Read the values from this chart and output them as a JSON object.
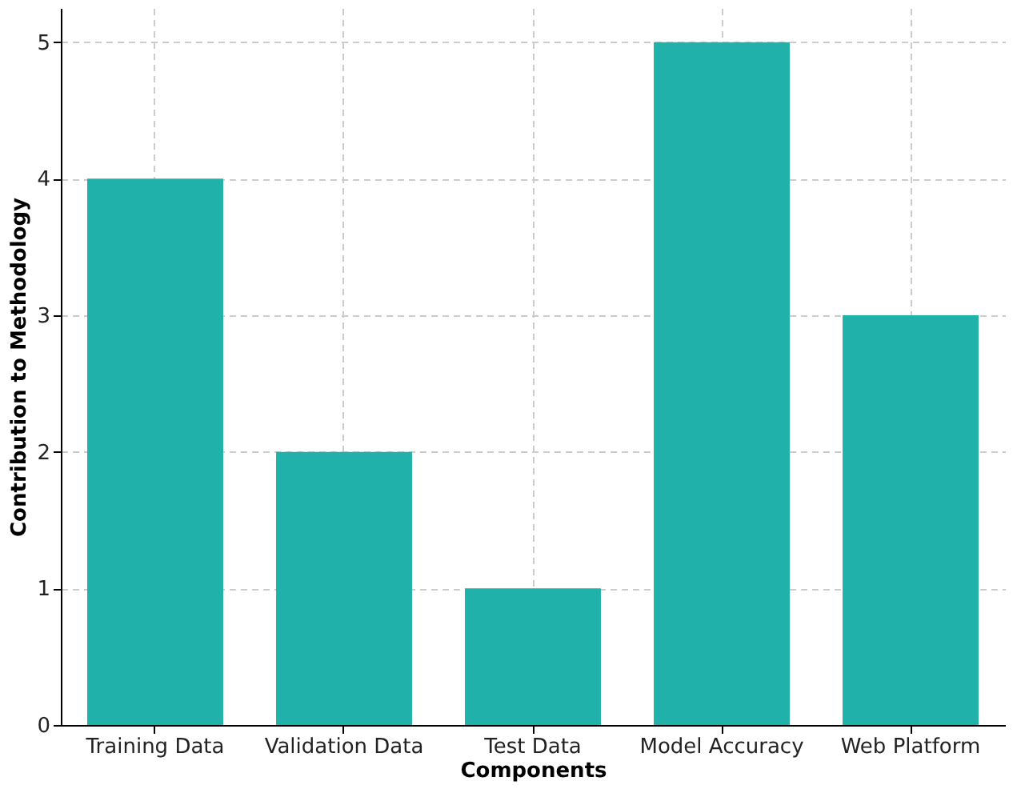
{
  "chart_data": {
    "type": "bar",
    "xlabel": "Components",
    "ylabel": "Contribution to Methodology",
    "categories": [
      "Training Data",
      "Validation Data",
      "Test Data",
      "Model Accuracy",
      "Web Platform"
    ],
    "values": [
      4,
      2,
      1,
      5,
      3
    ],
    "color": "#20b2aa",
    "ylim": [
      0,
      5.25
    ],
    "yticks": [
      0,
      1,
      2,
      3,
      4,
      5
    ],
    "grid": true,
    "line_style": "dashed"
  }
}
